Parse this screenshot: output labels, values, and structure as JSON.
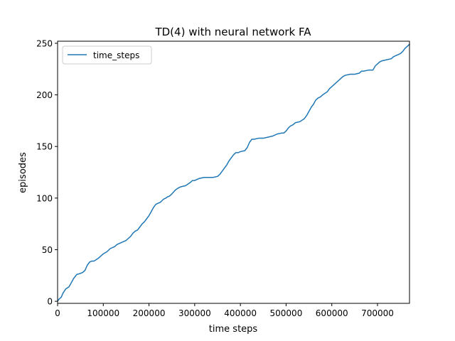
{
  "chart_data": {
    "type": "line",
    "title": "TD(4) with neural network FA",
    "xlabel": "time steps",
    "ylabel": "episodes",
    "xlim": [
      0,
      770000
    ],
    "ylim": [
      -2,
      252
    ],
    "xticks": [
      0,
      100000,
      200000,
      300000,
      400000,
      500000,
      600000,
      700000
    ],
    "xtick_labels": [
      "0",
      "100000",
      "200000",
      "300000",
      "400000",
      "500000",
      "600000",
      "700000"
    ],
    "yticks": [
      0,
      50,
      100,
      150,
      200,
      250
    ],
    "ytick_labels": [
      "0",
      "50",
      "100",
      "150",
      "200",
      "250"
    ],
    "grid": false,
    "legend": {
      "position": "top-left",
      "entries": [
        "time_steps"
      ]
    },
    "series": [
      {
        "name": "time_steps",
        "color": "#1f77b4",
        "x": [
          0,
          3000,
          8000,
          12000,
          18000,
          25000,
          30000,
          35000,
          42000,
          50000,
          55000,
          60000,
          65000,
          70000,
          75000,
          80000,
          90000,
          95000,
          100000,
          108000,
          115000,
          120000,
          125000,
          130000,
          140000,
          150000,
          160000,
          165000,
          170000,
          175000,
          180000,
          185000,
          190000,
          195000,
          200000,
          205000,
          210000,
          215000,
          220000,
          225000,
          232000,
          237000,
          240000,
          245000,
          250000,
          258000,
          265000,
          270000,
          280000,
          290000,
          295000,
          300000,
          310000,
          320000,
          330000,
          340000,
          350000,
          355000,
          360000,
          365000,
          370000,
          375000,
          380000,
          385000,
          390000,
          395000,
          400000,
          410000,
          415000,
          420000,
          425000,
          430000,
          440000,
          450000,
          460000,
          470000,
          480000,
          490000,
          495000,
          500000,
          505000,
          510000,
          515000,
          520000,
          530000,
          540000,
          545000,
          550000,
          555000,
          560000,
          565000,
          570000,
          575000,
          580000,
          590000,
          595000,
          600000,
          605000,
          610000,
          615000,
          620000,
          625000,
          630000,
          640000,
          650000,
          660000,
          665000,
          670000,
          680000,
          690000,
          695000,
          700000,
          705000,
          710000,
          720000,
          730000,
          735000,
          740000,
          745000,
          750000,
          755000,
          760000,
          765000,
          770000
        ],
        "y": [
          0,
          2,
          4,
          8,
          12,
          14,
          18,
          22,
          26,
          27,
          28,
          30,
          35,
          38,
          39,
          39,
          42,
          44,
          46,
          48,
          51,
          52,
          53,
          55,
          57,
          59,
          63,
          66,
          68,
          69,
          72,
          75,
          77,
          80,
          83,
          87,
          91,
          94,
          95,
          96,
          99,
          100,
          101,
          102,
          104,
          108,
          110,
          111,
          112,
          115,
          117,
          117,
          119,
          120,
          120,
          120,
          121,
          123,
          126,
          129,
          132,
          136,
          139,
          142,
          144,
          144,
          145,
          146,
          149,
          154,
          157,
          157,
          158,
          158,
          159,
          160,
          162,
          163,
          163,
          165,
          168,
          170,
          171,
          173,
          174,
          177,
          180,
          184,
          188,
          191,
          195,
          197,
          198,
          200,
          203,
          206,
          208,
          210,
          212,
          214,
          216,
          218,
          219,
          220,
          220,
          221,
          223,
          223,
          224,
          224,
          228,
          230,
          232,
          233,
          234,
          235,
          237,
          238,
          239,
          240,
          242,
          245,
          247,
          249
        ]
      }
    ]
  }
}
